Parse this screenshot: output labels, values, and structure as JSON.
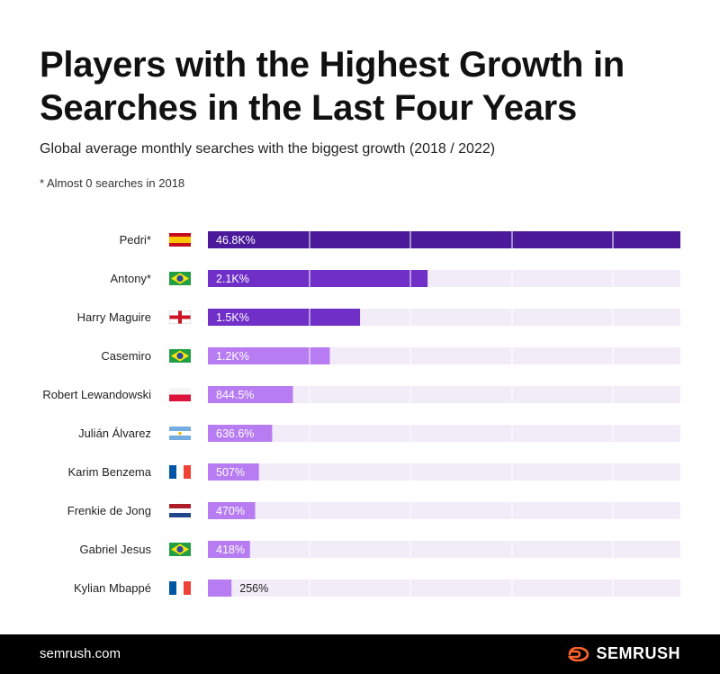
{
  "title": "Players with the Highest Growth in Searches in the Last Four Years",
  "subtitle": "Global average monthly searches with the biggest growth (2018 / 2022)",
  "note": "* Almost 0 searches in 2018",
  "footer": {
    "site": "semrush.com",
    "brand": "SEMRUSH"
  },
  "colors": {
    "dark_purple": "#4a1a9a",
    "mid_purple": "#7030c8",
    "light_purple": "#b77cf2",
    "track": "#f1ecf8",
    "brand_orange": "#ff642d"
  },
  "chart_data": {
    "type": "bar",
    "orientation": "horizontal",
    "categories": [
      "Pedri*",
      "Antony*",
      "Harry Maguire",
      "Casemiro",
      "Robert Lewandowski",
      "Julián Álvarez",
      "Karim Benzema",
      "Frenkie de Jong",
      "Gabriel Jesus",
      "Kylian Mbappé"
    ],
    "flags": [
      "spain-flag-icon",
      "brazil-flag-icon",
      "england-flag-icon",
      "brazil-flag-icon",
      "poland-flag-icon",
      "argentina-flag-icon",
      "france-flag-icon",
      "netherlands-flag-icon",
      "brazil-flag-icon",
      "france-flag-icon"
    ],
    "labels": [
      "46.8K%",
      "2.1K%",
      "1.5K%",
      "1.2K%",
      "844.5%",
      "636.6%",
      "507%",
      "470%",
      "418%",
      "256%"
    ],
    "values": [
      100,
      46.5,
      32.2,
      25.8,
      18,
      13.6,
      10.8,
      10,
      8.9,
      5
    ]
  }
}
